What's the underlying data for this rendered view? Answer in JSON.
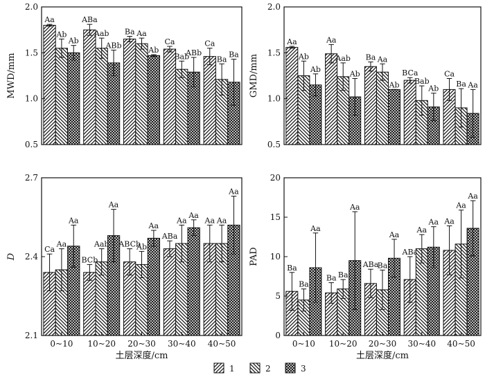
{
  "figure": {
    "legend": [
      {
        "label": "1",
        "pattern": "diag-right"
      },
      {
        "label": "2",
        "pattern": "diag-left"
      },
      {
        "label": "3",
        "pattern": "crosshatch"
      }
    ]
  },
  "chart_data": [
    {
      "type": "bar",
      "ylabel": "MWD/mm",
      "xlabel": "",
      "ylim": [
        0.5,
        2.0
      ],
      "yticks": [
        "0.5",
        "1.0",
        "1.5",
        "2.0"
      ],
      "categories": [
        "0~10",
        "10~20",
        "20~30",
        "30~40",
        "40~50"
      ],
      "show_xticklabels": false,
      "series": [
        {
          "name": "1",
          "values": [
            1.8,
            1.75,
            1.65,
            1.54,
            1.46
          ],
          "errors": [
            0.01,
            0.06,
            0.03,
            0.03,
            0.09
          ],
          "labels": [
            "Aa",
            "ABa",
            "Ba",
            "Ca",
            "Ca"
          ]
        },
        {
          "name": "2",
          "values": [
            1.55,
            1.55,
            1.6,
            1.32,
            1.21
          ],
          "errors": [
            0.1,
            0.11,
            0.06,
            0.09,
            0.17
          ],
          "labels": [
            "Ab",
            "Aab",
            "Aa",
            "Bab",
            "Ba"
          ]
        },
        {
          "name": "3",
          "values": [
            1.5,
            1.39,
            1.47,
            1.29,
            1.18
          ],
          "errors": [
            0.08,
            0.14,
            0.01,
            0.16,
            0.25
          ],
          "labels": [
            "Ab",
            "ABb",
            "Ab",
            "ABb",
            "Ba"
          ]
        }
      ]
    },
    {
      "type": "bar",
      "ylabel": "GMD/mm",
      "xlabel": "",
      "ylim": [
        0.5,
        2.0
      ],
      "yticks": [
        "0.5",
        "1.0",
        "1.5",
        "2.0"
      ],
      "categories": [
        "0~10",
        "10~20",
        "20~30",
        "30~40",
        "40~50"
      ],
      "show_xticklabels": false,
      "series": [
        {
          "name": "1",
          "values": [
            1.56,
            1.49,
            1.35,
            1.2,
            1.1
          ],
          "errors": [
            0.01,
            0.1,
            0.05,
            0.03,
            0.12
          ],
          "labels": [
            "Aa",
            "Aa",
            "Ba",
            "BCa",
            "Ca"
          ]
        },
        {
          "name": "2",
          "values": [
            1.25,
            1.24,
            1.29,
            0.98,
            0.9
          ],
          "errors": [
            0.16,
            0.15,
            0.09,
            0.16,
            0.21
          ],
          "labels": [
            "Ab",
            "Aab",
            "Aa",
            "Bab",
            "Ba"
          ]
        },
        {
          "name": "3",
          "values": [
            1.15,
            1.02,
            1.1,
            0.91,
            0.84
          ],
          "errors": [
            0.12,
            0.2,
            0.0,
            0.15,
            0.26
          ],
          "labels": [
            "Ab",
            "Ab",
            "Ab",
            "Ab",
            "Aa"
          ]
        }
      ]
    },
    {
      "type": "bar",
      "ylabel": "D",
      "xlabel": "土层深度/cm",
      "ylim": [
        2.1,
        2.7
      ],
      "yticks": [
        "2.1",
        "2.4",
        "2.7"
      ],
      "categories": [
        "0~10",
        "10~20",
        "20~30",
        "30~40",
        "40~50"
      ],
      "show_xticklabels": true,
      "series": [
        {
          "name": "1",
          "values": [
            2.34,
            2.34,
            2.38,
            2.43,
            2.45
          ],
          "errors": [
            0.07,
            0.03,
            0.05,
            0.03,
            0.07
          ],
          "labels": [
            "Ca",
            "BCb",
            "ABCb",
            "ABa",
            "Aa"
          ]
        },
        {
          "name": "2",
          "values": [
            2.35,
            2.38,
            2.37,
            2.45,
            2.45
          ],
          "errors": [
            0.08,
            0.05,
            0.05,
            0.07,
            0.07
          ],
          "labels": [
            "Aa",
            "Aab",
            "Ab",
            "Aa",
            "Aa"
          ]
        },
        {
          "name": "3",
          "values": [
            2.44,
            2.48,
            2.47,
            2.51,
            2.52
          ],
          "errors": [
            0.08,
            0.1,
            0.03,
            0.03,
            0.11
          ],
          "labels": [
            "Aa",
            "Aa",
            "Aa",
            "Aa",
            "Aa"
          ]
        }
      ]
    },
    {
      "type": "bar",
      "ylabel": "PAD",
      "xlabel": "土层深度/cm",
      "ylim": [
        0,
        20
      ],
      "yticks": [
        "0",
        "5",
        "10",
        "15",
        "20"
      ],
      "categories": [
        "0~10",
        "10~20",
        "20~30",
        "30~40",
        "40~50"
      ],
      "show_xticklabels": true,
      "series": [
        {
          "name": "1",
          "values": [
            5.6,
            5.4,
            6.6,
            7.1,
            10.8
          ],
          "errors": [
            2.4,
            1.3,
            1.8,
            2.9,
            3.1
          ],
          "labels": [
            "Ba",
            "Ba",
            "ABa",
            "ABa",
            "Aa"
          ]
        },
        {
          "name": "2",
          "values": [
            4.5,
            5.9,
            5.8,
            11.0,
            11.6
          ],
          "errors": [
            1.4,
            1.2,
            2.5,
            1.8,
            4.3
          ],
          "labels": [
            "Ba",
            "Ba",
            "Ba",
            "Aa",
            "Aa"
          ]
        },
        {
          "name": "3",
          "values": [
            8.6,
            9.5,
            9.8,
            11.2,
            13.6
          ],
          "errors": [
            4.4,
            6.2,
            2.4,
            2.6,
            3.5
          ],
          "labels": [
            "Aa",
            "Aa",
            "Aa",
            "Aa",
            "Aa"
          ]
        }
      ]
    }
  ]
}
